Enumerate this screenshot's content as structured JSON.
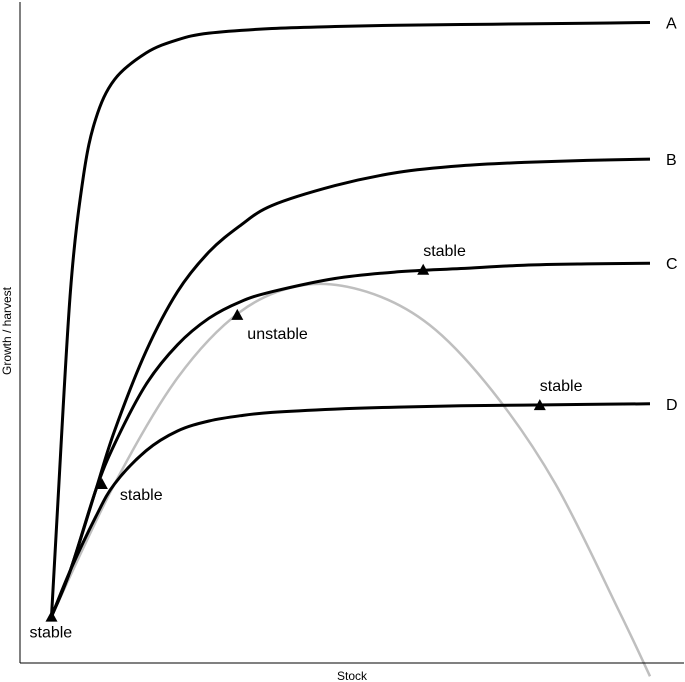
{
  "chart_data": {
    "type": "line",
    "title": "",
    "xlabel": "Stock",
    "ylabel": "Growth / harvest",
    "xlim": [
      0,
      100
    ],
    "ylim": [
      0,
      100
    ],
    "grid": false,
    "legend": "none",
    "ticks": "none",
    "colors": {
      "harvest": "#000000",
      "growth": "#bfbfbf",
      "axis": "#000000",
      "marker": "#000000"
    },
    "growth_curve": {
      "x": [
        5,
        15,
        25,
        35,
        45,
        55,
        65,
        75,
        85,
        95,
        100
      ],
      "y": [
        7,
        27,
        43,
        53,
        57,
        56,
        51,
        41,
        27,
        8,
        -2
      ]
    },
    "series": [
      {
        "name": "A",
        "x": [
          5,
          6,
          8,
          10,
          12,
          15,
          20,
          25,
          30,
          40,
          50,
          60,
          70,
          80,
          90,
          100
        ],
        "y": [
          7,
          24,
          56,
          73,
          82,
          88,
          92,
          94,
          95,
          95.7,
          96,
          96.2,
          96.3,
          96.4,
          96.5,
          96.6
        ]
      },
      {
        "name": "B",
        "x": [
          5,
          8,
          12,
          15,
          20,
          25,
          30,
          35,
          40,
          50,
          60,
          70,
          80,
          90,
          100
        ],
        "y": [
          7,
          14,
          26,
          35,
          47,
          56,
          62,
          66,
          69,
          72,
          74,
          75,
          75.5,
          75.8,
          76
        ]
      },
      {
        "name": "C",
        "x": [
          5,
          8,
          12,
          15,
          20,
          25,
          30,
          35,
          40,
          50,
          60,
          70,
          80,
          90,
          100
        ],
        "y": [
          7,
          14,
          26,
          33,
          42,
          48,
          52,
          54.5,
          56,
          58,
          59,
          59.5,
          60,
          60.2,
          60.3
        ]
      },
      {
        "name": "D",
        "x": [
          5,
          8,
          12,
          15,
          20,
          25,
          30,
          35,
          40,
          50,
          60,
          70,
          80,
          90,
          100
        ],
        "y": [
          7,
          14,
          22,
          27,
          32,
          35,
          36.5,
          37.3,
          37.8,
          38.3,
          38.6,
          38.8,
          38.9,
          39,
          39.1
        ]
      }
    ],
    "equilibria": [
      {
        "x": 5,
        "y": 7,
        "label": "stable"
      },
      {
        "x": 13,
        "y": 27,
        "label": "stable"
      },
      {
        "x": 34.5,
        "y": 52.5,
        "label": "unstable"
      },
      {
        "x": 64,
        "y": 59.3,
        "label": "stable"
      },
      {
        "x": 82.5,
        "y": 38.9,
        "label": "stable"
      }
    ]
  }
}
